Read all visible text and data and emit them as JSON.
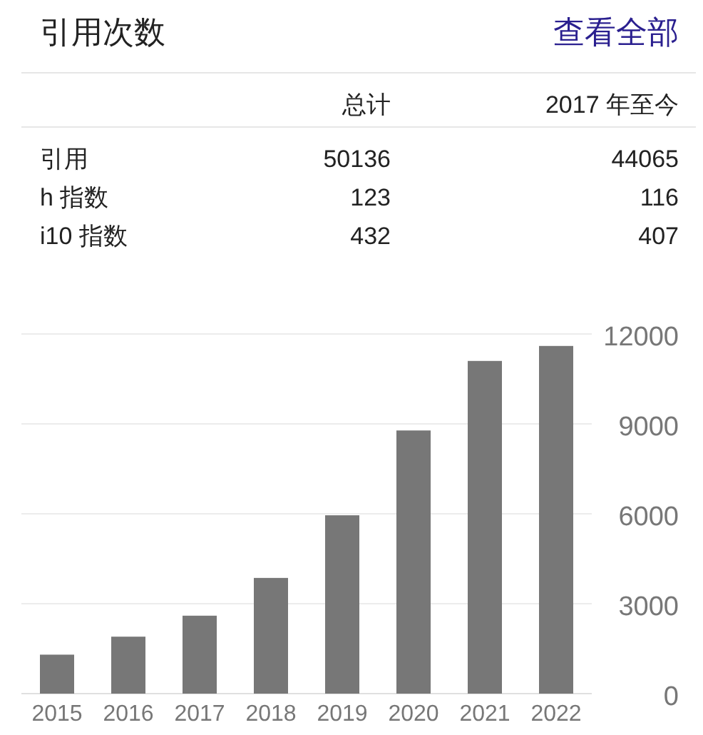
{
  "chart_data": [
    {
      "type": "other",
      "title": "引用次数",
      "annotations": [
        "查看全部",
        "总计",
        "2017 年至今",
        "引用",
        "50136",
        "44065",
        "h 指数",
        "123",
        "116",
        "i10 指数",
        "432",
        "407"
      ]
    },
    {
      "type": "bar",
      "categories": [
        "2015",
        "2016",
        "2017",
        "2018",
        "2019",
        "2020",
        "2021",
        "2022"
      ],
      "values": [
        1300,
        1900,
        2600,
        3860,
        5950,
        8780,
        11100,
        11600
      ],
      "color": "#777777",
      "ylim": [
        0,
        12000
      ],
      "yticks": [
        0,
        3000,
        6000,
        9000,
        12000
      ],
      "grid": "y"
    }
  ]
}
